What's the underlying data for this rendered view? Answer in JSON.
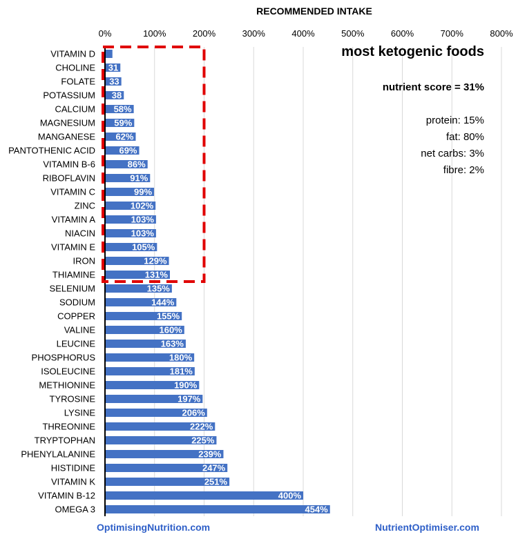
{
  "chart_data": {
    "type": "bar",
    "orientation": "horizontal",
    "title": "most ketogenic foods",
    "xlabel": "RECOMMENDED INTAKE",
    "ylabel": "",
    "xlim": [
      0,
      800
    ],
    "x_ticks": [
      "0%",
      "100%",
      "200%",
      "300%",
      "400%",
      "500%",
      "600%",
      "700%",
      "800%"
    ],
    "bar_color": "#4472C4",
    "highlight_color": "#E00000",
    "highlight_box": {
      "x_max": 200,
      "from_category": "VITAMIN D",
      "to_category": "THIAMINE",
      "style": "dashed"
    },
    "categories": [
      "VITAMIN D",
      "CHOLINE",
      "FOLATE",
      "POTASSIUM",
      "CALCIUM",
      "MAGNESIUM",
      "MANGANESE",
      "PANTOTHENIC ACID",
      "VITAMIN B-6",
      "RIBOFLAVIN",
      "VITAMIN C",
      "ZINC",
      "VITAMIN A",
      "NIACIN",
      "VITAMIN E",
      "IRON",
      "THIAMINE",
      "SELENIUM",
      "SODIUM",
      "COPPER",
      "VALINE",
      "LEUCINE",
      "PHOSPHORUS",
      "ISOLEUCINE",
      "METHIONINE",
      "TYROSINE",
      "LYSINE",
      "THREONINE",
      "TRYPTOPHAN",
      "PHENYLALANINE",
      "HISTIDINE",
      "VITAMIN K",
      "VITAMIN B-12",
      "OMEGA 3"
    ],
    "values": [
      15,
      31,
      33,
      38,
      58,
      59,
      62,
      69,
      86,
      91,
      99,
      102,
      103,
      103,
      105,
      129,
      131,
      135,
      144,
      155,
      160,
      163,
      180,
      181,
      190,
      197,
      206,
      222,
      225,
      239,
      247,
      251,
      400,
      454
    ],
    "data_labels": [
      "",
      "31",
      "33",
      "38",
      "58%",
      "59%",
      "62%",
      "69%",
      "86%",
      "91%",
      "99%",
      "102%",
      "103%",
      "103%",
      "105%",
      "129%",
      "131%",
      "135%",
      "144%",
      "155%",
      "160%",
      "163%",
      "180%",
      "181%",
      "190%",
      "197%",
      "206%",
      "222%",
      "225%",
      "239%",
      "247%",
      "251%",
      "400%",
      "454%"
    ]
  },
  "panel": {
    "title": "most ketogenic foods",
    "score": "nutrient score = 31%",
    "macros": [
      "protein: 15%",
      "fat: 80%",
      "net carbs: 3%",
      "fibre: 2%"
    ]
  },
  "footer": {
    "left": "OptimisingNutrition.com",
    "right": "NutrientOptimiser.com"
  },
  "colors": {
    "bar": "#4472C4",
    "highlight": "#E00000",
    "footer_text": "#2E5FC8",
    "grid": "#D9D9D9"
  }
}
